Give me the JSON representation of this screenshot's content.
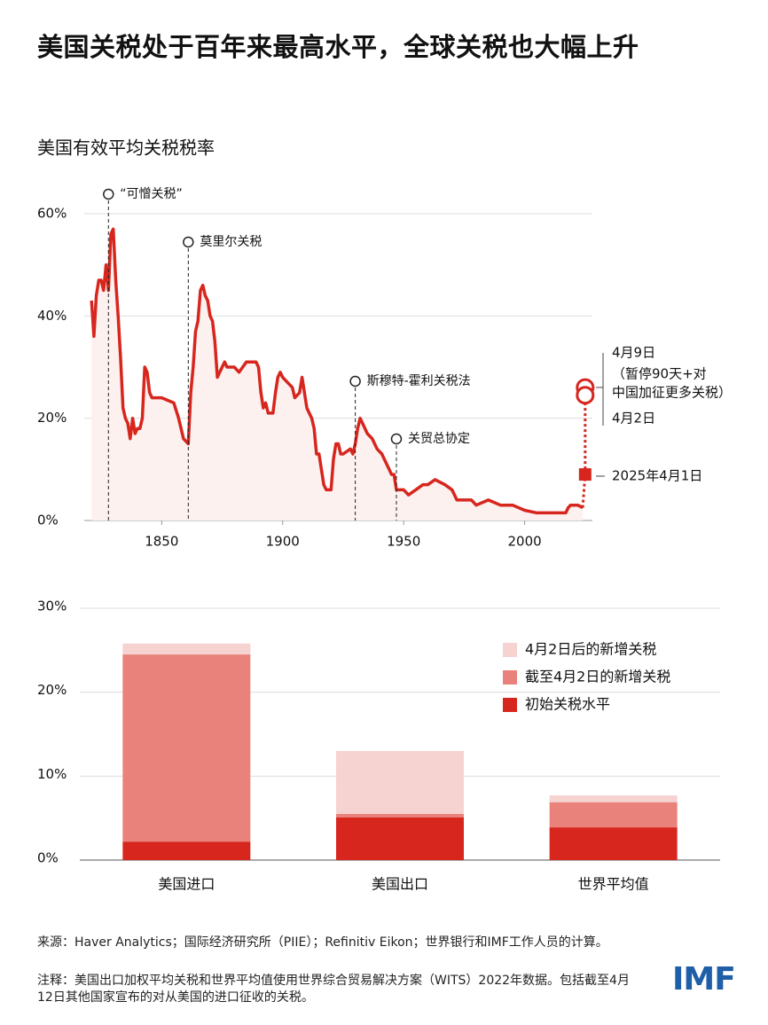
{
  "title": "美国关税处于百年来最高水平，全球关税也大幅上升",
  "chart_data": [
    {
      "type": "line",
      "title": "美国有效平均关税税率",
      "xlim": [
        1818,
        2028
      ],
      "xticks": [
        1850,
        1900,
        1950,
        2000
      ],
      "ylim": [
        0,
        60
      ],
      "yticks": [
        {
          "value": 0,
          "label": "0%"
        },
        {
          "value": 20,
          "label": "20%"
        },
        {
          "value": 40,
          "label": "40%"
        },
        {
          "value": 60,
          "label": "60%"
        }
      ],
      "grid": true,
      "series": [
        {
          "name": "美国有效平均关税税率",
          "color": "#d7261e",
          "fill": "#fdf1ef",
          "x": [
            1821,
            1822,
            1823,
            1824,
            1825,
            1826,
            1827,
            1828,
            1829,
            1830,
            1831,
            1832,
            1833,
            1834,
            1835,
            1836,
            1837,
            1838,
            1839,
            1840,
            1841,
            1842,
            1843,
            1844,
            1845,
            1846,
            1847,
            1850,
            1855,
            1857,
            1859,
            1861,
            1862,
            1863,
            1864,
            1865,
            1866,
            1867,
            1868,
            1869,
            1870,
            1871,
            1872,
            1873,
            1875,
            1876,
            1877,
            1880,
            1882,
            1885,
            1889,
            1890,
            1891,
            1892,
            1893,
            1894,
            1896,
            1897,
            1898,
            1899,
            1900,
            1902,
            1904,
            1905,
            1907,
            1908,
            1910,
            1912,
            1913,
            1914,
            1915,
            1916,
            1917,
            1918,
            1919,
            1920,
            1921,
            1922,
            1923,
            1924,
            1925,
            1928,
            1929,
            1930,
            1931,
            1932,
            1933,
            1935,
            1937,
            1939,
            1941,
            1942,
            1944,
            1945,
            1946,
            1947,
            1948,
            1950,
            1952,
            1955,
            1958,
            1960,
            1963,
            1967,
            1970,
            1972,
            1975,
            1978,
            1980,
            1985,
            1990,
            1995,
            2000,
            2005,
            2010,
            2015,
            2017,
            2018,
            2019,
            2022,
            2024
          ],
          "values": [
            43,
            36,
            44,
            47,
            47,
            45,
            50,
            45,
            56,
            57,
            47,
            40,
            32,
            22,
            20,
            19,
            16,
            20,
            17,
            18,
            18,
            20,
            30,
            29,
            25,
            24,
            24,
            24,
            23,
            20,
            16,
            15,
            25,
            30,
            37,
            39,
            45,
            46,
            44,
            43,
            40,
            39,
            35,
            28,
            30,
            31,
            30,
            30,
            29,
            31,
            31,
            30,
            25,
            22,
            23,
            21,
            21,
            25,
            28,
            29,
            28,
            27,
            26,
            24,
            25,
            28,
            22,
            20,
            18,
            13,
            13,
            10,
            7,
            6,
            6,
            6,
            12,
            15,
            15,
            13,
            13,
            14,
            13,
            15,
            18,
            20,
            19,
            17,
            16,
            14,
            13,
            12,
            10,
            9,
            9,
            6,
            6,
            6,
            5,
            6,
            7,
            7,
            8,
            7,
            6,
            4,
            4,
            4,
            3,
            4,
            3,
            3,
            2,
            1.5,
            1.5,
            1.5,
            1.5,
            2.5,
            3,
            3,
            2.5
          ]
        }
      ],
      "annotations": [
        {
          "x": 1828,
          "label": "“可憎关税”"
        },
        {
          "x": 1861,
          "label": "莫里尔关税"
        },
        {
          "x": 1930,
          "label": "斯穆特-霍利关税法"
        },
        {
          "x": 1947,
          "label": "关贸总协定"
        }
      ],
      "events": [
        {
          "x": 2025,
          "value": 26,
          "label": [
            "4月9日",
            "（暂停90天+对",
            "中国加征更多关税）"
          ]
        },
        {
          "x": 2025,
          "value": 24.5,
          "label": [
            "4月2日"
          ]
        },
        {
          "x": 2025,
          "value": 9,
          "label": [
            "2025年4月1日"
          ]
        }
      ]
    },
    {
      "type": "stacked_bar",
      "categories": [
        "美国进口",
        "美国出口",
        "世界平均值"
      ],
      "ylim": [
        0,
        30
      ],
      "yticks": [
        {
          "value": 0,
          "label": "0%"
        },
        {
          "value": 10,
          "label": "10%"
        },
        {
          "value": 20,
          "label": "20%"
        },
        {
          "value": 30,
          "label": "30%"
        }
      ],
      "grid": true,
      "series": [
        {
          "name": "初始关税水平",
          "color": "#d7261e",
          "values": [
            2.2,
            5.1,
            3.9
          ]
        },
        {
          "name": "截至4月2日的新增关税",
          "color": "#e8827a",
          "values": [
            22.3,
            0.4,
            3.0
          ]
        },
        {
          "name": "4月2日后的新增关税",
          "color": "#f6d2d0",
          "values": [
            1.3,
            7.5,
            0.8
          ]
        }
      ]
    }
  ],
  "source": "来源：Haver Analytics；国际经济研究所（PIIE）；Refinitiv Eikon；世界银行和IMF工作人员的计算。",
  "note": "注释：美国出口加权平均关税和世界平均值使用世界综合贸易解决方案（WITS）2022年数据。包括截至4月12日其他国家宣布的对从美国的进口征收的关税。",
  "logo": "IMF"
}
